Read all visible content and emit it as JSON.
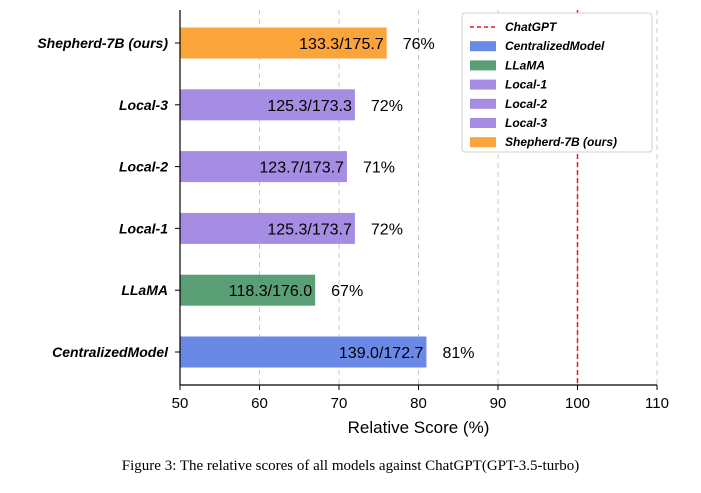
{
  "caption": "Figure 3: The relative scores of all models against ChatGPT(GPT-3.5-turbo)",
  "chart_data": {
    "type": "bar",
    "orientation": "horizontal",
    "xlabel": "Relative Score (%)",
    "xlim": [
      50,
      110
    ],
    "xticks": [
      50,
      60,
      70,
      80,
      90,
      100,
      110
    ],
    "grid": "vertical dashed",
    "reference_line": {
      "name": "ChatGPT",
      "value": 100,
      "color": "#e41a1c",
      "style": "dashed"
    },
    "categories": [
      "CentralizedModel",
      "LLaMA",
      "Local-1",
      "Local-2",
      "Local-3",
      "Shepherd-7B (ours)"
    ],
    "values": [
      81,
      67,
      72,
      71,
      72,
      76
    ],
    "bar_labels": [
      "139.0/172.7",
      "118.3/176.0",
      "125.3/173.7",
      "123.7/173.7",
      "125.3/173.3",
      "133.3/175.7"
    ],
    "percent_labels": [
      "81%",
      "67%",
      "72%",
      "71%",
      "72%",
      "76%"
    ],
    "colors": [
      "#6a89e6",
      "#5a9e76",
      "#a68de4",
      "#a68de4",
      "#a68de4",
      "#fba43a"
    ],
    "legend": {
      "placement": "top-right",
      "entries": [
        {
          "label": "ChatGPT",
          "kind": "line",
          "color": "#e41a1c"
        },
        {
          "label": "CentralizedModel",
          "kind": "patch",
          "color": "#6a89e6"
        },
        {
          "label": "LLaMA",
          "kind": "patch",
          "color": "#5a9e76"
        },
        {
          "label": "Local-1",
          "kind": "patch",
          "color": "#a68de4"
        },
        {
          "label": "Local-2",
          "kind": "patch",
          "color": "#a68de4"
        },
        {
          "label": "Local-3",
          "kind": "patch",
          "color": "#a68de4"
        },
        {
          "label": "Shepherd-7B (ours)",
          "kind": "patch",
          "color": "#fba43a"
        }
      ]
    }
  }
}
